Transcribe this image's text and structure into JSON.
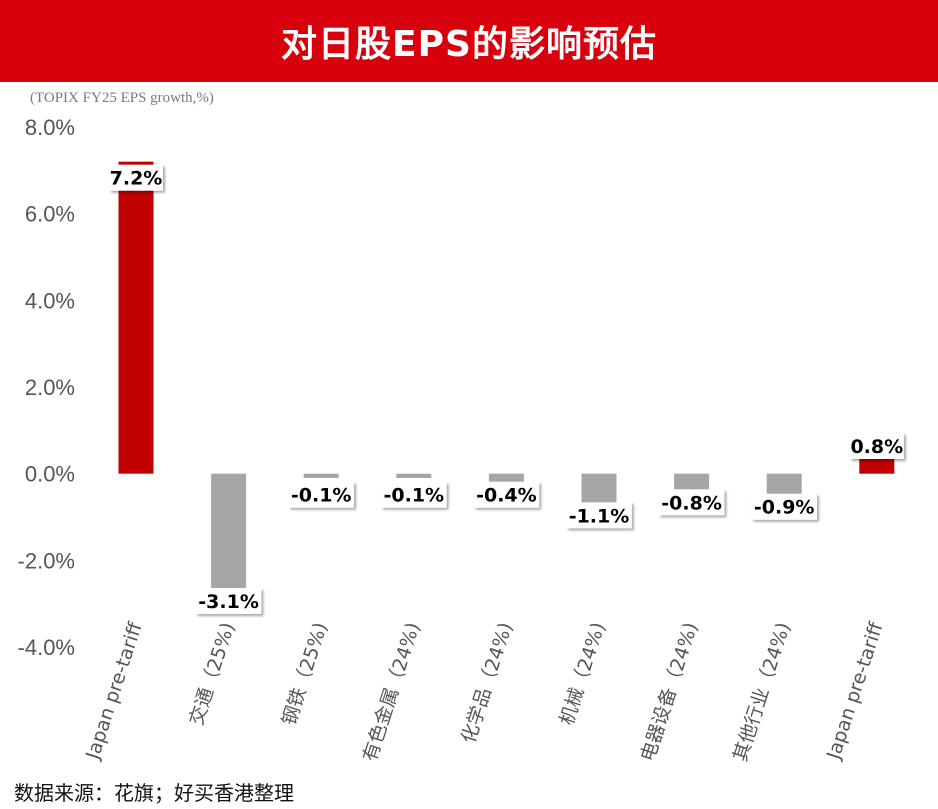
{
  "header": {
    "title": "对日股EPS的影响预估"
  },
  "unit_note": "(TOPIX FY25 EPS growth,%)",
  "source": "数据来源：花旗；好买香港整理",
  "colors": {
    "title_bg": "#d9000d",
    "bar_red": "#c00000",
    "bar_gray": "#a6a6a6"
  },
  "chart_data": {
    "type": "bar",
    "categories": [
      "Japan pre-tariff",
      "交通（25%)",
      "钢铁（25%)",
      "有色金属（24%)",
      "化学品（24%)",
      "机械（24%)",
      "电器设备（24%)",
      "其他行业（24%)",
      "Japan pre-tariff"
    ],
    "values": [
      7.2,
      -3.1,
      -0.1,
      -0.1,
      -0.4,
      -1.1,
      -0.8,
      -0.9,
      0.8
    ],
    "data_labels": [
      "7.2%",
      "-3.1%",
      "-0.1%",
      "-0.1%",
      "-0.4%",
      "-1.1%",
      "-0.8%",
      "-0.9%",
      "0.8%"
    ],
    "bar_colors": [
      "#c00000",
      "#a6a6a6",
      "#a6a6a6",
      "#a6a6a6",
      "#a6a6a6",
      "#a6a6a6",
      "#a6a6a6",
      "#a6a6a6",
      "#c00000"
    ],
    "ylim": [
      -4,
      8
    ],
    "yticks": [
      8,
      6,
      4,
      2,
      0,
      -2,
      -4
    ],
    "ytick_labels": [
      "8.0%",
      "6.0%",
      "4.0%",
      "2.0%",
      "0.0%",
      "-2.0%",
      "-4.0%"
    ],
    "grid": false,
    "legend": "none"
  }
}
